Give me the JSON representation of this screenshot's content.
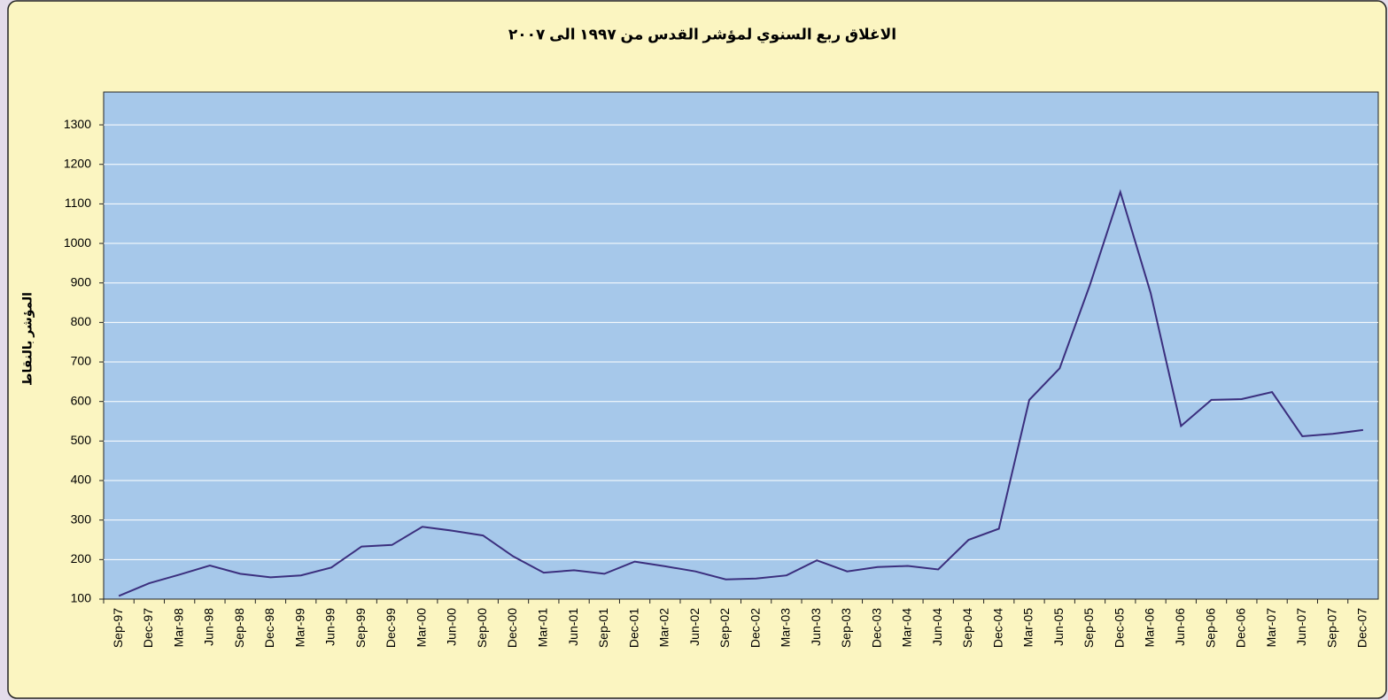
{
  "chart_data": {
    "type": "line",
    "title": "الاغلاق  ربع السنوي لمؤشر القدس من ١٩٩٧ الى  ٢٠٠٧",
    "y_label": "المؤشر بالنقاط",
    "categories": [
      "Sep-97",
      "Dec-97",
      "Mar-98",
      "Jun-98",
      "Sep-98",
      "Dec-98",
      "Mar-99",
      "Jun-99",
      "Sep-99",
      "Dec-99",
      "Mar-00",
      "Jun-00",
      "Sep-00",
      "Dec-00",
      "Mar-01",
      "Jun-01",
      "Sep-01",
      "Dec-01",
      "Mar-02",
      "Jun-02",
      "Sep-02",
      "Dec-02",
      "Mar-03",
      "Jun-03",
      "Sep-03",
      "Dec-03",
      "Mar-04",
      "Jun-04",
      "Sep-04",
      "Dec-04",
      "Mar-05",
      "Jun-05",
      "Sep-05",
      "Dec-05",
      "Mar-06",
      "Jun-06",
      "Sep-06",
      "Dec-06",
      "Mar-07",
      "Jun-07",
      "Sep-07",
      "Dec-07"
    ],
    "values": [
      108,
      140,
      162,
      185,
      164,
      155,
      160,
      180,
      233,
      237,
      283,
      273,
      261,
      208,
      167,
      173,
      164,
      195,
      183,
      170,
      150,
      152,
      160,
      198,
      170,
      181,
      184,
      175,
      250,
      278,
      604,
      684,
      895,
      1130,
      875,
      538,
      604,
      606,
      624,
      512,
      518,
      528
    ],
    "color": "#3b2f7e",
    "ylim": [
      100,
      1383
    ],
    "yticks": [
      100,
      200,
      300,
      400,
      500,
      600,
      700,
      800,
      900,
      1000,
      1100,
      1200,
      1300
    ],
    "grid": true
  }
}
